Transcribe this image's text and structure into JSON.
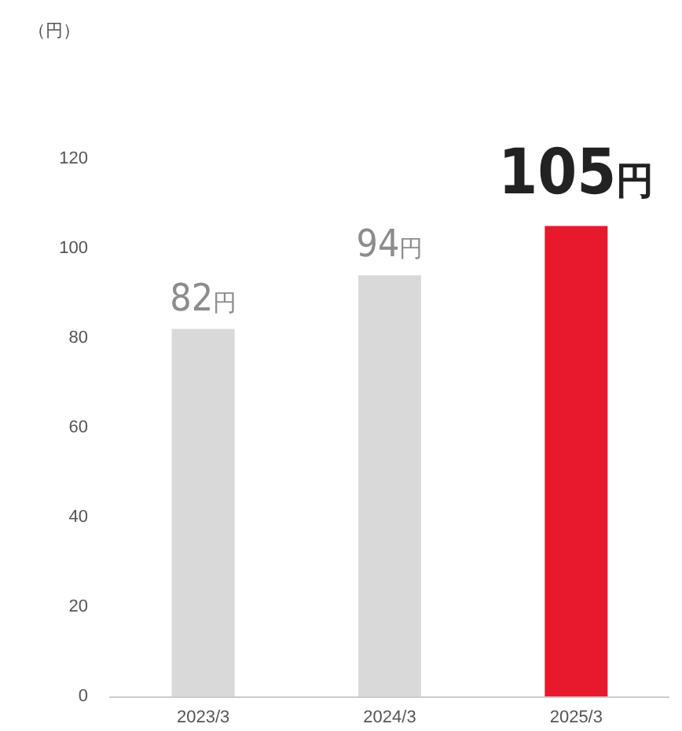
{
  "chart_data": {
    "type": "bar",
    "annotations": [
      "（円）"
    ],
    "categories": [
      "2023/3",
      "2024/3",
      "2025/3"
    ],
    "values": [
      82,
      94,
      105
    ],
    "colors": [
      "#d9d9d9",
      "#d9d9d9",
      "#e8192c"
    ],
    "value_labels": [
      "82円",
      "94円",
      "105円"
    ],
    "ylim": [
      0,
      120
    ],
    "yticks": [
      0,
      20,
      40,
      60,
      80,
      100,
      120
    ],
    "grid": false
  }
}
